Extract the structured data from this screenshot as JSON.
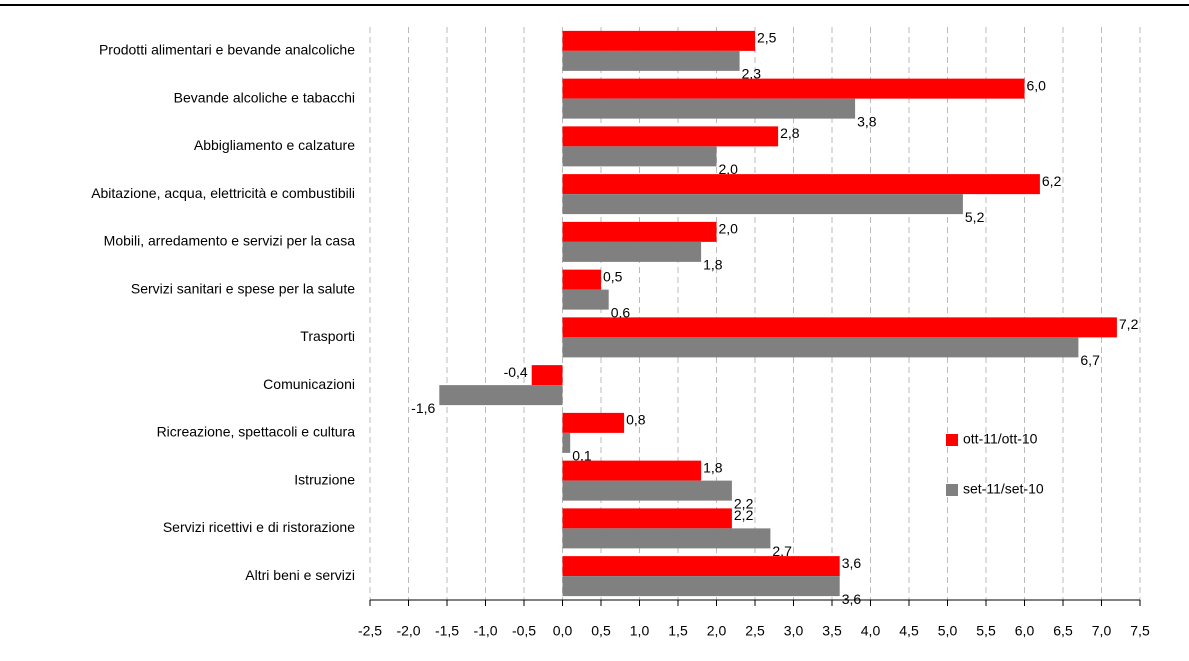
{
  "chart_data": {
    "type": "bar",
    "orientation": "horizontal",
    "categories": [
      "Prodotti alimentari e bevande analcoliche",
      "Bevande alcoliche e tabacchi",
      "Abbigliamento e calzature",
      "Abitazione, acqua, elettricità e combustibili",
      "Mobili, arredamento e servizi per la casa",
      "Servizi sanitari e spese per la salute",
      "Trasporti",
      "Comunicazioni",
      "Ricreazione, spettacoli e cultura",
      "Istruzione",
      "Servizi ricettivi e di ristorazione",
      "Altri beni e servizi"
    ],
    "series": [
      {
        "name": "ott-11/ott-10",
        "color": "#ff0000",
        "values": [
          2.5,
          6.0,
          2.8,
          6.2,
          2.0,
          0.5,
          7.2,
          -0.4,
          0.8,
          1.8,
          2.2,
          3.6
        ],
        "value_labels": [
          "2,5",
          "6,0",
          "2,8",
          "6,2",
          "2,0",
          "0,5",
          "7,2",
          "-0,4",
          "0,8",
          "1,8",
          "2,2",
          "3,6"
        ]
      },
      {
        "name": "set-11/set-10",
        "color": "#808080",
        "values": [
          2.3,
          3.8,
          2.0,
          5.2,
          1.8,
          0.6,
          6.7,
          -1.6,
          0.1,
          2.2,
          2.7,
          3.6
        ],
        "value_labels": [
          "2,3",
          "3,8",
          "2,0",
          "5,2",
          "1,8",
          "0,6",
          "6,7",
          "-1,6",
          "0,1",
          "2,2",
          "2,7",
          "3,6"
        ]
      }
    ],
    "xlim": [
      -2.5,
      7.5
    ],
    "xticks": [
      {
        "value": -2.5,
        "label": "-2,5"
      },
      {
        "value": -2.0,
        "label": "-2,0"
      },
      {
        "value": -1.5,
        "label": "-1,5"
      },
      {
        "value": -1.0,
        "label": "-1,0"
      },
      {
        "value": -0.5,
        "label": "-0,5"
      },
      {
        "value": 0,
        "label": "0,0"
      },
      {
        "value": 0.5,
        "label": "0,5"
      },
      {
        "value": 1.0,
        "label": "1,0"
      },
      {
        "value": 1.5,
        "label": "1,5"
      },
      {
        "value": 2.0,
        "label": "2,0"
      },
      {
        "value": 2.5,
        "label": "2,5"
      },
      {
        "value": 3.0,
        "label": "3,0"
      },
      {
        "value": 3.5,
        "label": "3,5"
      },
      {
        "value": 4.0,
        "label": "4,0"
      },
      {
        "value": 4.5,
        "label": "4,5"
      },
      {
        "value": 5.0,
        "label": "5,0"
      },
      {
        "value": 5.5,
        "label": "5,5"
      },
      {
        "value": 6.0,
        "label": "6,0"
      },
      {
        "value": 6.5,
        "label": "6,5"
      },
      {
        "value": 7.0,
        "label": "7,0"
      },
      {
        "value": 7.5,
        "label": "7,5"
      }
    ],
    "grid": true
  }
}
